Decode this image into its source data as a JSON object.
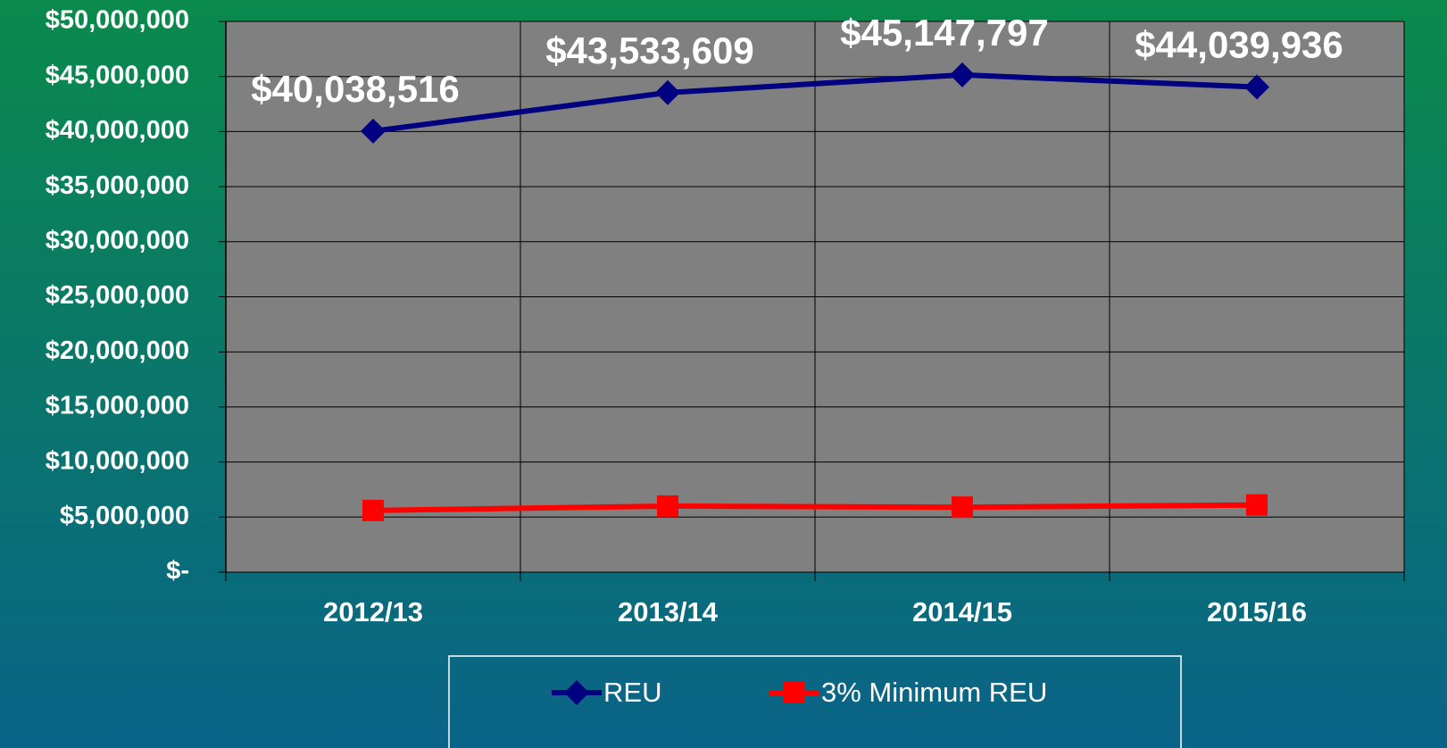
{
  "chart_data": {
    "type": "line",
    "categories": [
      "2012/13",
      "2013/14",
      "2014/15",
      "2015/16"
    ],
    "series": [
      {
        "name": "REU",
        "color": "#000080",
        "marker": "diamond",
        "values": [
          40038516,
          43533609,
          45147797,
          44039936
        ],
        "value_labels": [
          "$40,038,516",
          "$43,533,609",
          "$45,147,797",
          "$44,039,936"
        ]
      },
      {
        "name": "3% Minimum REU",
        "color": "#ff0000",
        "marker": "square",
        "values": [
          5600000,
          6000000,
          5900000,
          6100000
        ]
      }
    ],
    "ylim": [
      0,
      50000000
    ],
    "yticks": [
      {
        "value": 0,
        "label": "$-"
      },
      {
        "value": 5000000,
        "label": "$5,000,000"
      },
      {
        "value": 10000000,
        "label": "$10,000,000"
      },
      {
        "value": 15000000,
        "label": "$15,000,000"
      },
      {
        "value": 20000000,
        "label": "$20,000,000"
      },
      {
        "value": 25000000,
        "label": "$25,000,000"
      },
      {
        "value": 30000000,
        "label": "$30,000,000"
      },
      {
        "value": 35000000,
        "label": "$35,000,000"
      },
      {
        "value": 40000000,
        "label": "$40,000,000"
      },
      {
        "value": 45000000,
        "label": "$45,000,000"
      },
      {
        "value": 50000000,
        "label": "$50,000,000"
      }
    ],
    "grid": true,
    "legend": "bottom"
  }
}
